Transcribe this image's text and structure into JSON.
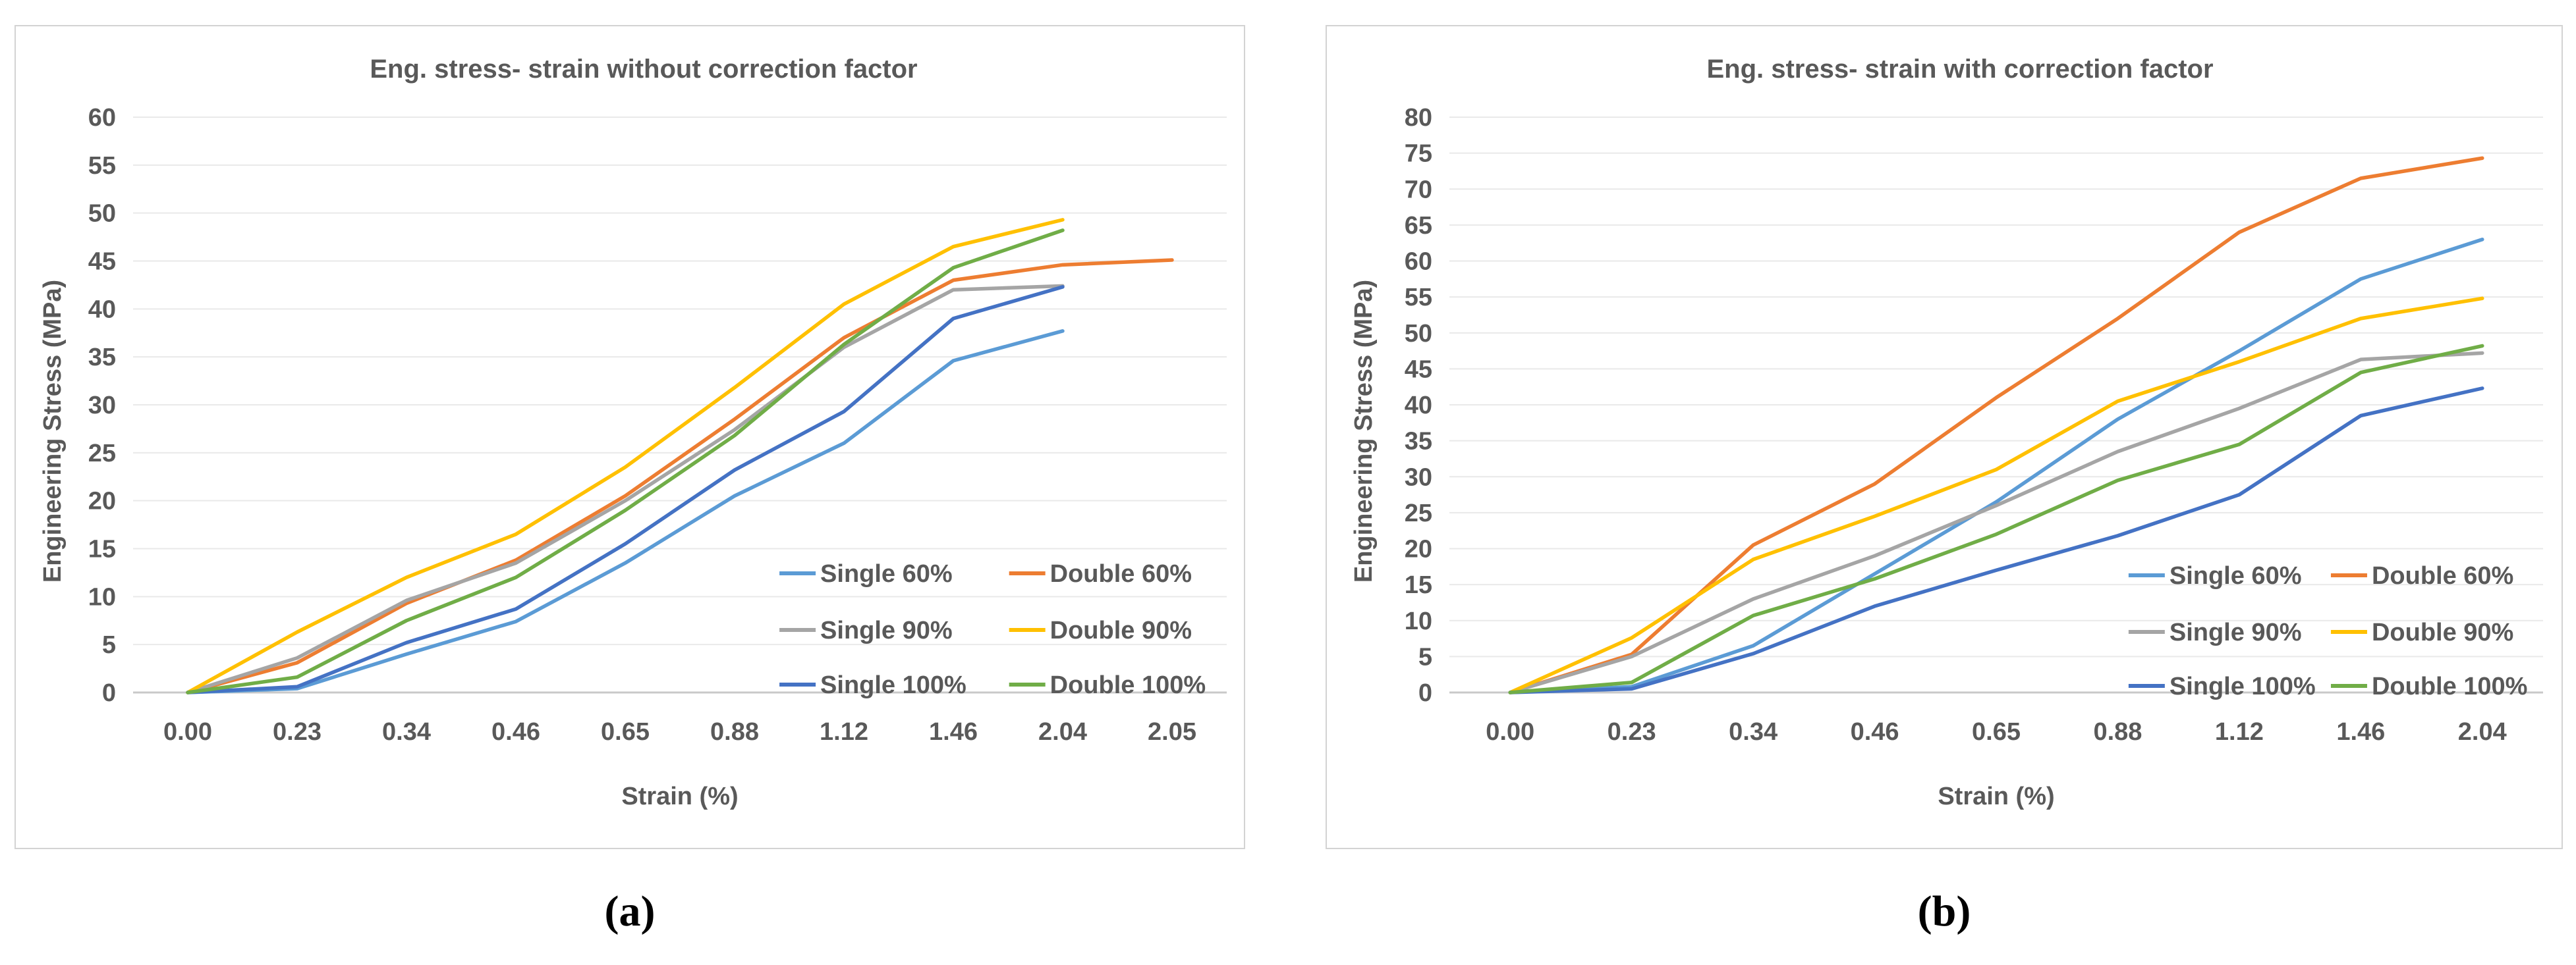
{
  "page": {
    "caption_a": "(a)",
    "caption_b": "(b)"
  },
  "colors": {
    "text": "#595959",
    "gridline": "#e9e9e9",
    "axis_line": "#c9c9c9",
    "panel_border": "#d3d3d3",
    "background": "#ffffff",
    "series_single_60": "#5B9BD5",
    "series_double_60": "#ED7D31",
    "series_single_90": "#A5A5A5",
    "series_double_90": "#FFC000",
    "series_single_100": "#4472C4",
    "series_double_100": "#70AD47"
  },
  "chart_data": [
    {
      "type": "line",
      "title": "Eng. stress- strain without correction factor",
      "xlabel": "Strain (%)",
      "ylabel": "Engineering Stress (MPa)",
      "ylim": [
        0,
        60
      ],
      "ytick_step": 5,
      "yticks": [
        0,
        5,
        10,
        15,
        20,
        25,
        30,
        35,
        40,
        45,
        50,
        55,
        60
      ],
      "grid": true,
      "legend_position": "inside-lower-right",
      "categories": [
        "0.00",
        "0.23",
        "0.34",
        "0.46",
        "0.65",
        "0.88",
        "1.12",
        "1.46",
        "2.04",
        "2.05"
      ],
      "series": [
        {
          "name": "Single 60%",
          "color": "#5B9BD5",
          "values": [
            0,
            0.4,
            4.0,
            7.4,
            13.5,
            20.5,
            26.0,
            34.6,
            37.7,
            null
          ]
        },
        {
          "name": "Double 60%",
          "color": "#ED7D31",
          "values": [
            0,
            3.1,
            9.3,
            13.8,
            20.5,
            28.5,
            37.0,
            43.0,
            44.6,
            45.1
          ]
        },
        {
          "name": "Single 90%",
          "color": "#A5A5A5",
          "values": [
            0,
            3.6,
            9.6,
            13.5,
            20.0,
            27.4,
            36.0,
            42.0,
            42.4,
            null
          ]
        },
        {
          "name": "Double 90%",
          "color": "#FFC000",
          "values": [
            0,
            6.3,
            12.0,
            16.5,
            23.5,
            31.8,
            40.5,
            46.5,
            49.3,
            null
          ]
        },
        {
          "name": "Single 100%",
          "color": "#4472C4",
          "values": [
            0,
            0.6,
            5.2,
            8.7,
            15.5,
            23.2,
            29.3,
            39.0,
            42.3,
            null
          ]
        },
        {
          "name": "Double 100%",
          "color": "#70AD47",
          "values": [
            0,
            1.6,
            7.5,
            12.0,
            19.0,
            26.8,
            36.3,
            44.3,
            48.2,
            null
          ]
        }
      ]
    },
    {
      "type": "line",
      "title": "Eng. stress- strain with correction factor",
      "xlabel": "Strain (%)",
      "ylabel": "Engineering Stress (MPa)",
      "ylim": [
        0,
        80
      ],
      "ytick_step": 5,
      "yticks": [
        0,
        5,
        10,
        15,
        20,
        25,
        30,
        35,
        40,
        45,
        50,
        55,
        60,
        65,
        70,
        75,
        80
      ],
      "grid": true,
      "legend_position": "inside-lower-right",
      "categories": [
        "0.00",
        "0.23",
        "0.34",
        "0.46",
        "0.65",
        "0.88",
        "1.12",
        "1.46",
        "2.04"
      ],
      "series": [
        {
          "name": "Single 60%",
          "color": "#5B9BD5",
          "values": [
            0,
            0.8,
            6.5,
            16.5,
            26.5,
            38.0,
            47.5,
            57.5,
            63.0
          ]
        },
        {
          "name": "Double 60%",
          "color": "#ED7D31",
          "values": [
            0,
            5.3,
            20.5,
            29.0,
            41.0,
            52.0,
            64.0,
            71.5,
            74.3
          ]
        },
        {
          "name": "Single 90%",
          "color": "#A5A5A5",
          "values": [
            0,
            5.0,
            13.0,
            19.0,
            26.0,
            33.5,
            39.5,
            46.3,
            47.2
          ]
        },
        {
          "name": "Double 90%",
          "color": "#FFC000",
          "values": [
            0,
            7.6,
            18.5,
            24.5,
            31.0,
            40.5,
            46.0,
            52.0,
            54.8
          ]
        },
        {
          "name": "Single 100%",
          "color": "#4472C4",
          "values": [
            0,
            0.5,
            5.4,
            12.0,
            17.0,
            21.8,
            27.5,
            38.5,
            42.3
          ]
        },
        {
          "name": "Double 100%",
          "color": "#70AD47",
          "values": [
            0,
            1.4,
            10.7,
            15.8,
            22.0,
            29.5,
            34.5,
            44.5,
            48.2
          ]
        }
      ]
    }
  ]
}
